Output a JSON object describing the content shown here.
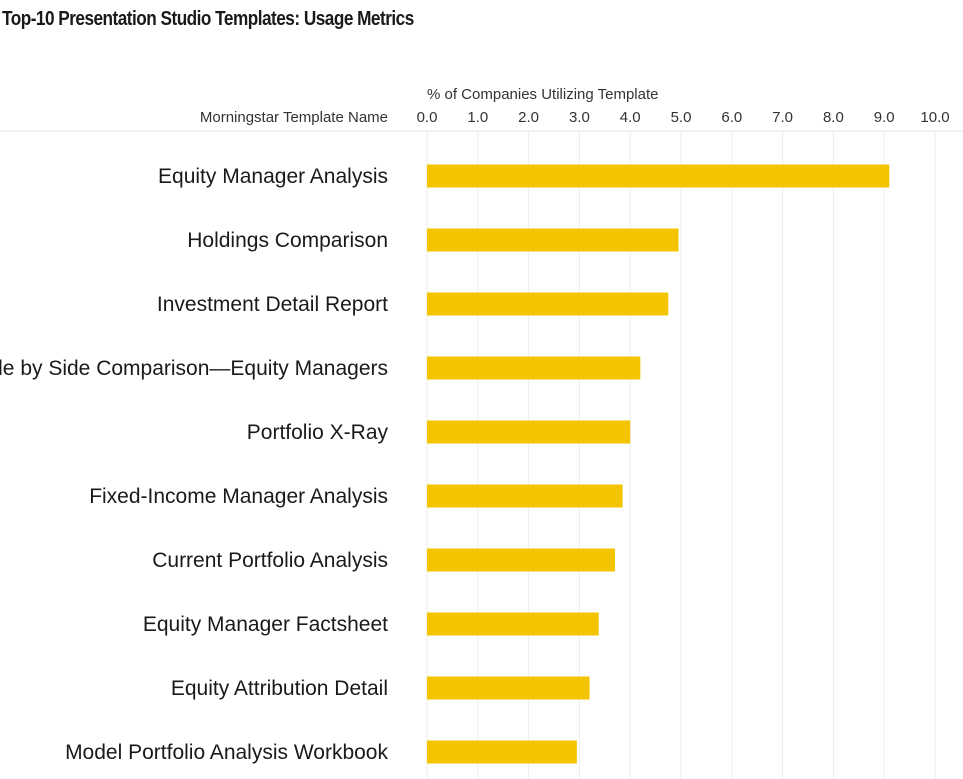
{
  "chart_data": {
    "type": "bar",
    "orientation": "horizontal",
    "title": "Top-10 Presentation Studio Templates: Usage Metrics",
    "xlabel": "% of Companies Utilizing Template",
    "ylabel": "Morningstar Template Name",
    "xlim": [
      0,
      10
    ],
    "ticks": [
      "0.0",
      "1.0",
      "2.0",
      "3.0",
      "4.0",
      "5.0",
      "6.0",
      "7.0",
      "8.0",
      "9.0",
      "10.0"
    ],
    "categories": [
      "Equity Manager Analysis",
      "Holdings Comparison",
      "Investment Detail Report",
      "Side by Side Comparison—Equity Managers",
      "Portfolio X-Ray",
      "Fixed-Income Manager Analysis",
      "Current Portfolio Analysis",
      "Equity Manager Factsheet",
      "Equity Attribution Detail",
      "Model Portfolio Analysis Workbook"
    ],
    "values": [
      9.1,
      4.95,
      4.75,
      4.2,
      4.0,
      3.85,
      3.7,
      3.38,
      3.2,
      2.95
    ],
    "bar_color": "#f4c400",
    "grid": true,
    "legend": "none"
  }
}
